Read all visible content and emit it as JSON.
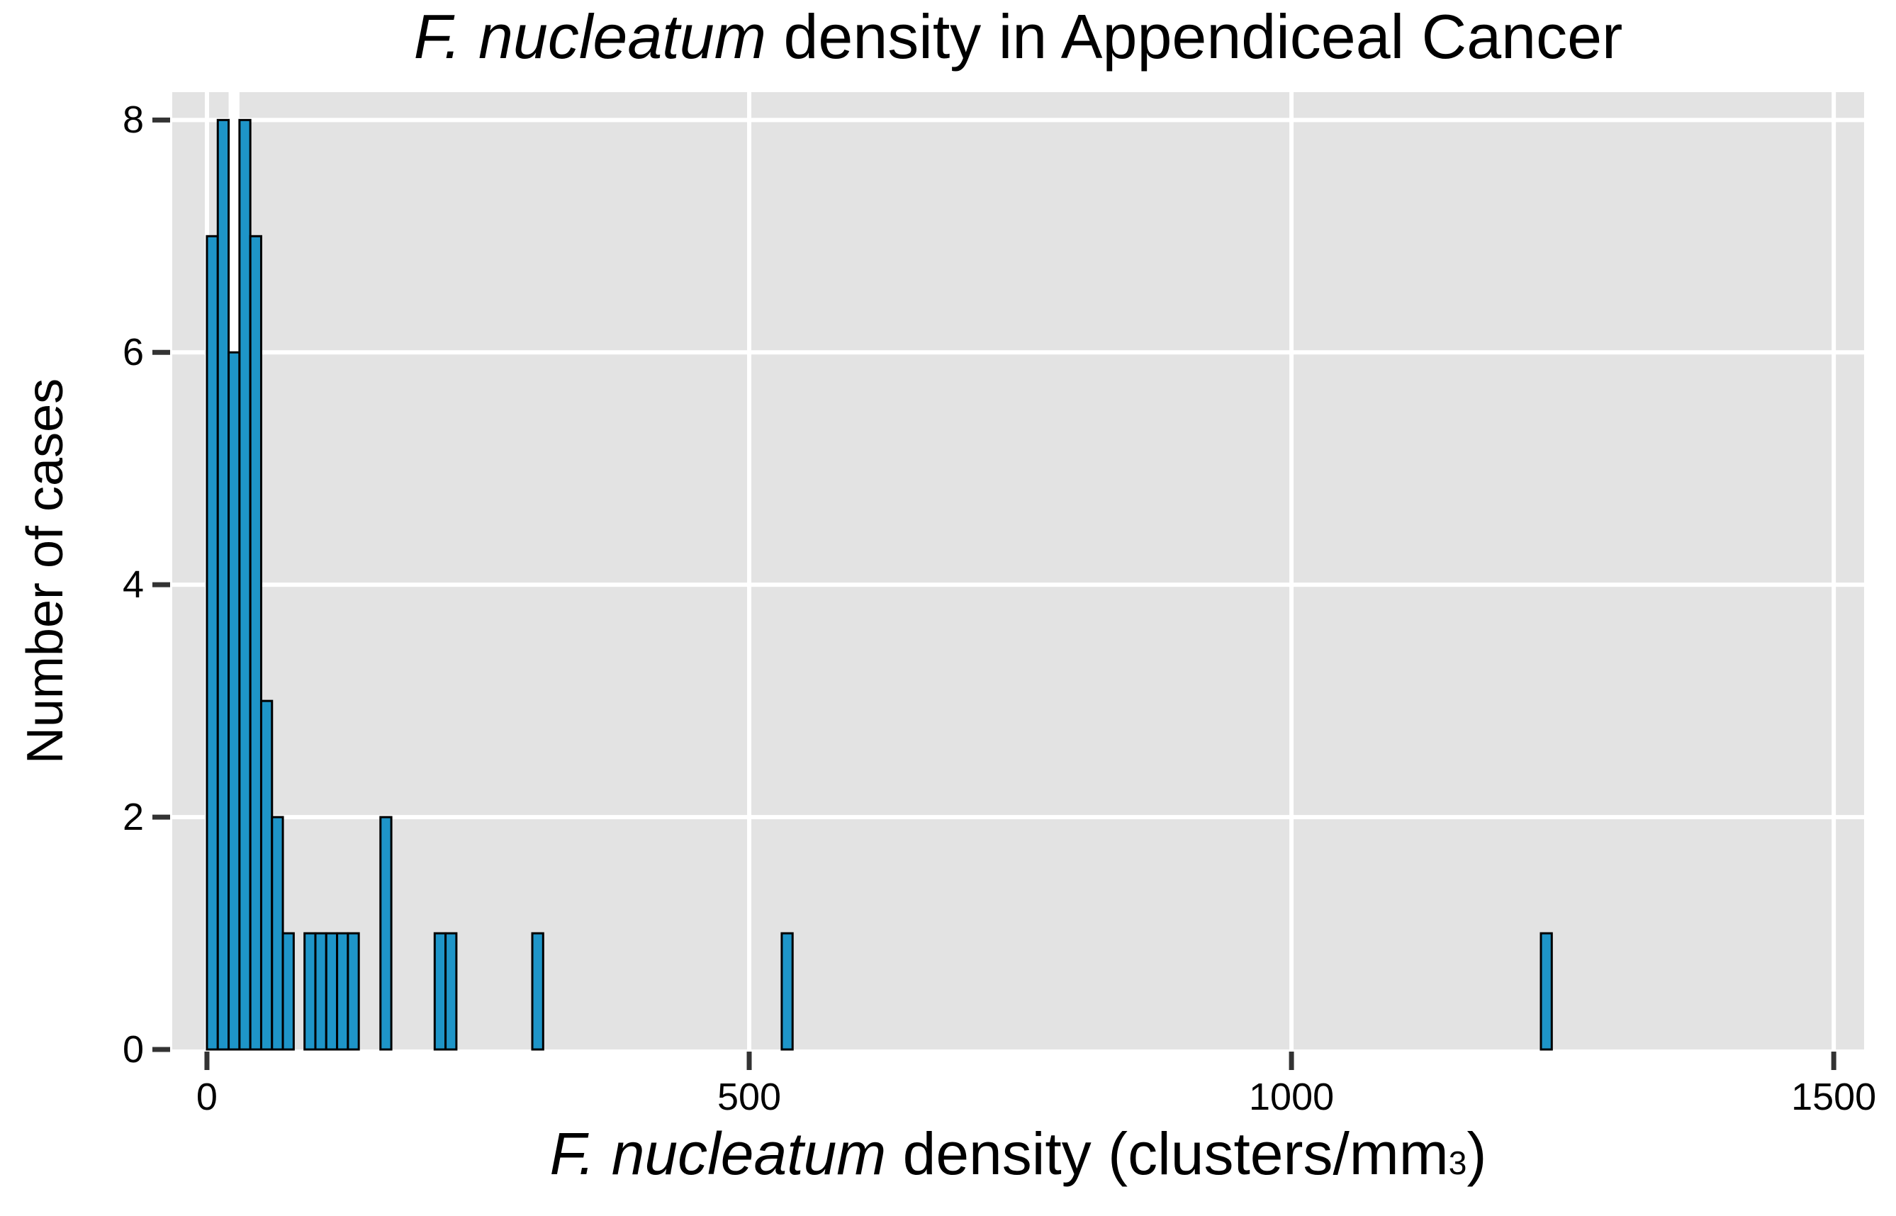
{
  "title": {
    "italic": "F. nucleatum",
    "rest": " density in Appendiceal Cancer"
  },
  "x_axis": {
    "label_italic": "F. nucleatum",
    "label_rest": " density (clusters/mm",
    "label_sup": "3",
    "label_after": ")",
    "tick_labels": [
      "0",
      "500",
      "1000",
      "1500"
    ]
  },
  "y_axis": {
    "label": "Number of cases",
    "tick_labels": [
      "0",
      "2",
      "4",
      "6",
      "8"
    ]
  },
  "chart_data": {
    "type": "bar",
    "subtype": "histogram",
    "title": "F. nucleatum density in Appendiceal Cancer",
    "xlabel": "F. nucleatum density (clusters/mm3)",
    "ylabel": "Number of cases",
    "bin_width": 10,
    "bins": [
      {
        "start": 0,
        "count": 7
      },
      {
        "start": 10,
        "count": 8
      },
      {
        "start": 20,
        "count": 6
      },
      {
        "start": 30,
        "count": 8
      },
      {
        "start": 40,
        "count": 7
      },
      {
        "start": 50,
        "count": 3
      },
      {
        "start": 60,
        "count": 2
      },
      {
        "start": 70,
        "count": 1
      },
      {
        "start": 90,
        "count": 1
      },
      {
        "start": 100,
        "count": 1
      },
      {
        "start": 110,
        "count": 1
      },
      {
        "start": 120,
        "count": 1
      },
      {
        "start": 130,
        "count": 1
      },
      {
        "start": 160,
        "count": 2
      },
      {
        "start": 210,
        "count": 1
      },
      {
        "start": 220,
        "count": 1
      },
      {
        "start": 300,
        "count": 1
      },
      {
        "start": 530,
        "count": 1
      },
      {
        "start": 1230,
        "count": 1
      }
    ],
    "x_ticks": [
      0,
      500,
      1000,
      1500
    ],
    "y_ticks": [
      0,
      2,
      4,
      6,
      8
    ],
    "xlim": [
      -32,
      1528
    ],
    "ylim": [
      0,
      8.24
    ],
    "grid": "major white gridlines on gray panel, no axis lines, no legend",
    "white_highlight_column_bin_start": 20,
    "colors": {
      "bar_fill": "#1e95c8",
      "bar_border": "#000000",
      "panel_background": "#e3e3e3",
      "gridline": "#ffffff",
      "tick": "#333333",
      "text": "#000000",
      "page_background": "#ffffff"
    }
  }
}
